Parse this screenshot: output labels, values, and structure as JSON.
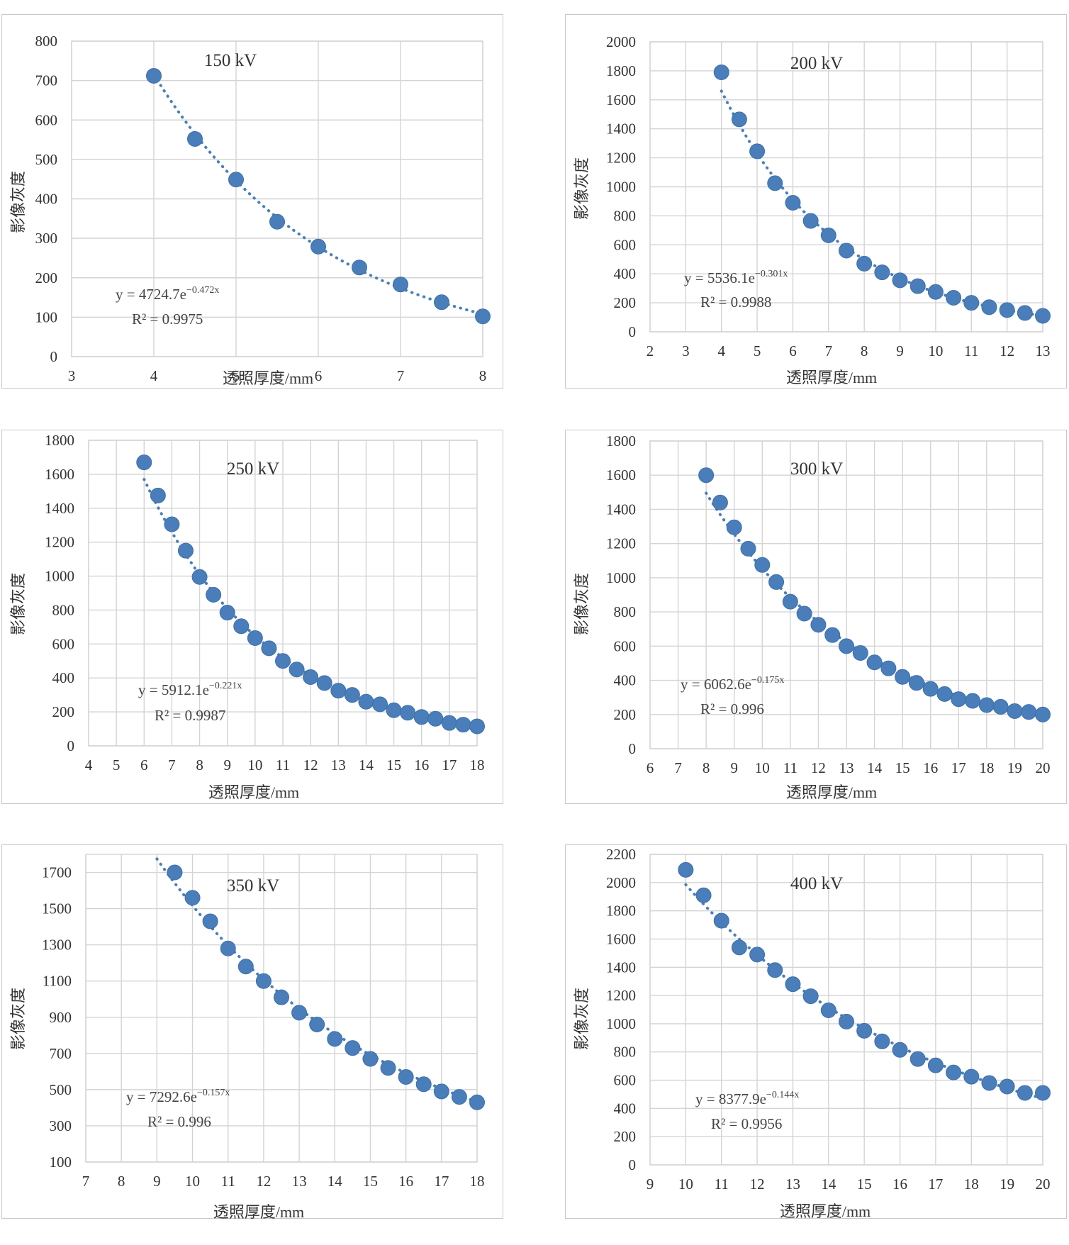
{
  "chart_data": [
    {
      "type": "scatter",
      "title": "150 kV",
      "xlabel": "透照厚度/mm",
      "ylabel": "影像灰度",
      "xlim": [
        3,
        8
      ],
      "ylim": [
        0,
        800
      ],
      "xticks": [
        "3",
        "4",
        "5",
        "6",
        "7",
        "8"
      ],
      "yticks": [
        "0",
        "100",
        "200",
        "300",
        "400",
        "500",
        "600",
        "700",
        "800"
      ],
      "trendline": {
        "type": "exponential",
        "a": 4724.7,
        "b": -0.472,
        "x_from": 4,
        "x_to": 8
      },
      "equation": {
        "prefix": "y = 4724.7e",
        "exponent": "−0.472x"
      },
      "r2": "R² = 0.9975",
      "x": [
        4,
        4.5,
        5,
        5.5,
        6,
        6.5,
        7,
        7.5,
        8
      ],
      "y": [
        712,
        552,
        449,
        342,
        279,
        226,
        183,
        138,
        102
      ]
    },
    {
      "type": "scatter",
      "title": "200 kV",
      "xlabel": "透照厚度/mm",
      "ylabel": "影像灰度",
      "xlim": [
        2,
        13
      ],
      "ylim": [
        0,
        2000
      ],
      "xticks": [
        "2",
        "3",
        "4",
        "5",
        "6",
        "7",
        "8",
        "9",
        "10",
        "11",
        "12",
        "13"
      ],
      "yticks": [
        "0",
        "200",
        "400",
        "600",
        "800",
        "1000",
        "1200",
        "1400",
        "1600",
        "1800",
        "2000"
      ],
      "trendline": {
        "type": "exponential",
        "a": 5536.1,
        "b": -0.301,
        "x_from": 4,
        "x_to": 13
      },
      "equation": {
        "prefix": "y = 5536.1e",
        "exponent": "−0.301x"
      },
      "r2": "R² = 0.9988",
      "x": [
        4,
        4.5,
        5,
        5.5,
        6,
        6.5,
        7,
        7.5,
        8,
        8.5,
        9,
        9.5,
        10,
        10.5,
        11,
        11.5,
        12,
        12.5,
        13
      ],
      "y": [
        1790,
        1465,
        1245,
        1025,
        890,
        765,
        665,
        560,
        470,
        410,
        355,
        315,
        275,
        235,
        200,
        170,
        150,
        130,
        110
      ]
    },
    {
      "type": "scatter",
      "title": "250 kV",
      "xlabel": "透照厚度/mm",
      "ylabel": "影像灰度",
      "xlim": [
        4,
        18
      ],
      "ylim": [
        0,
        1800
      ],
      "xticks": [
        "4",
        "5",
        "6",
        "7",
        "8",
        "9",
        "10",
        "11",
        "12",
        "13",
        "14",
        "15",
        "16",
        "17",
        "18"
      ],
      "yticks": [
        "0",
        "200",
        "400",
        "600",
        "800",
        "1000",
        "1200",
        "1400",
        "1600",
        "1800"
      ],
      "trendline": {
        "type": "exponential",
        "a": 5912.1,
        "b": -0.221,
        "x_from": 6,
        "x_to": 18
      },
      "equation": {
        "prefix": "y = 5912.1e",
        "exponent": "−0.221x"
      },
      "r2": "R² = 0.9987",
      "x": [
        6,
        6.5,
        7,
        7.5,
        8,
        8.5,
        9,
        9.5,
        10,
        10.5,
        11,
        11.5,
        12,
        12.5,
        13,
        13.5,
        14,
        14.5,
        15,
        15.5,
        16,
        16.5,
        17,
        17.5,
        18
      ],
      "y": [
        1670,
        1475,
        1305,
        1150,
        995,
        890,
        785,
        705,
        635,
        575,
        500,
        450,
        405,
        370,
        325,
        300,
        260,
        245,
        210,
        195,
        170,
        160,
        135,
        125,
        115
      ]
    },
    {
      "type": "scatter",
      "title": "300 kV",
      "xlabel": "透照厚度/mm",
      "ylabel": "影像灰度",
      "xlim": [
        6,
        20
      ],
      "ylim": [
        0,
        1800
      ],
      "xticks": [
        "6",
        "7",
        "8",
        "9",
        "10",
        "11",
        "12",
        "13",
        "14",
        "15",
        "16",
        "17",
        "18",
        "19",
        "20"
      ],
      "yticks": [
        "0",
        "200",
        "400",
        "600",
        "800",
        "1000",
        "1200",
        "1400",
        "1600",
        "1800"
      ],
      "trendline": {
        "type": "exponential",
        "a": 6062.6,
        "b": -0.175,
        "x_from": 8,
        "x_to": 20
      },
      "equation": {
        "prefix": "y = 6062.6e",
        "exponent": "−0.175x"
      },
      "r2": "R² = 0.996",
      "x": [
        8,
        8.5,
        9,
        9.5,
        10,
        10.5,
        11,
        11.5,
        12,
        12.5,
        13,
        13.5,
        14,
        14.5,
        15,
        15.5,
        16,
        16.5,
        17,
        17.5,
        18,
        18.5,
        19,
        19.5,
        20
      ],
      "y": [
        1600,
        1440,
        1295,
        1170,
        1075,
        975,
        860,
        790,
        725,
        665,
        600,
        560,
        505,
        470,
        420,
        385,
        350,
        320,
        290,
        280,
        255,
        245,
        220,
        215,
        200
      ]
    },
    {
      "type": "scatter",
      "title": "350 kV",
      "xlabel": "透照厚度/mm",
      "ylabel": "影像灰度",
      "xlim": [
        7,
        18
      ],
      "ylim": [
        100,
        1800
      ],
      "xticks": [
        "7",
        "8",
        "9",
        "10",
        "11",
        "12",
        "13",
        "14",
        "15",
        "16",
        "17",
        "18"
      ],
      "yticks": [
        "100",
        "300",
        "500",
        "700",
        "900",
        "1100",
        "1300",
        "1500",
        "1700"
      ],
      "trendline": {
        "type": "exponential",
        "a": 7292.6,
        "b": -0.157,
        "x_from": 9,
        "x_to": 18
      },
      "equation": {
        "prefix": "y = 7292.6e",
        "exponent": "−0.157x"
      },
      "r2": "R² = 0.996",
      "x": [
        9.5,
        10,
        10.5,
        11,
        11.5,
        12,
        12.5,
        13,
        13.5,
        14,
        14.5,
        15,
        15.5,
        16,
        16.5,
        17,
        17.5,
        18
      ],
      "y": [
        1700,
        1560,
        1430,
        1280,
        1180,
        1100,
        1010,
        925,
        860,
        780,
        730,
        670,
        620,
        570,
        530,
        490,
        460,
        430
      ]
    },
    {
      "type": "scatter",
      "title": "400 kV",
      "xlabel": "透照厚度/mm",
      "ylabel": "影像灰度",
      "xlim": [
        9,
        20
      ],
      "ylim": [
        0,
        2200
      ],
      "xticks": [
        "9",
        "10",
        "11",
        "12",
        "13",
        "14",
        "15",
        "16",
        "17",
        "18",
        "19",
        "20"
      ],
      "yticks": [
        "0",
        "200",
        "400",
        "600",
        "800",
        "1000",
        "1200",
        "1400",
        "1600",
        "1800",
        "2000",
        "2200"
      ],
      "trendline": {
        "type": "exponential",
        "a": 8377.9,
        "b": -0.144,
        "x_from": 10,
        "x_to": 20
      },
      "equation": {
        "prefix": "y = 8377.9e",
        "exponent": "−0.144x"
      },
      "r2": "R² = 0.9956",
      "x": [
        10,
        10.5,
        11,
        11.5,
        12,
        12.5,
        13,
        13.5,
        14,
        14.5,
        15,
        15.5,
        16,
        16.5,
        17,
        17.5,
        18,
        18.5,
        19,
        19.5,
        20
      ],
      "y": [
        2090,
        1910,
        1730,
        1540,
        1490,
        1380,
        1280,
        1195,
        1095,
        1015,
        950,
        875,
        815,
        750,
        705,
        655,
        625,
        580,
        555,
        510,
        510
      ]
    }
  ]
}
